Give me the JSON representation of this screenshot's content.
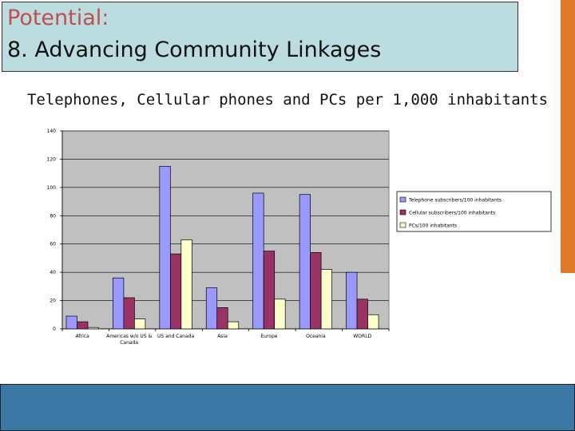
{
  "slide": {
    "title_line1": "Potential:",
    "title_line2": "8. Advancing Community Linkages",
    "subtitle": "Telephones, Cellular phones and PCs per 1,000 inhabitants"
  },
  "colors": {
    "title_bg": "#bcdde0",
    "accent_orange": "#e07a2a",
    "bottom_bar": "#3b78a6",
    "plot_bg": "#c0c0c0"
  },
  "chart_data": {
    "type": "bar",
    "title": "",
    "xlabel": "",
    "ylabel": "",
    "ylim": [
      0,
      140
    ],
    "yticks": [
      0,
      20,
      40,
      60,
      80,
      100,
      120,
      140
    ],
    "grid": true,
    "legend_position": "right",
    "categories": [
      "Africa",
      "Americas w/o US & Canada",
      "US and Canada",
      "Asia",
      "Europe",
      "Oceania",
      "WORLD"
    ],
    "series": [
      {
        "name": "Telephone subscribers/100 inhabitants",
        "color": "#9999ff",
        "values": [
          9,
          36,
          115,
          29,
          96,
          95,
          40
        ]
      },
      {
        "name": "Cellular subscribers/100 inhabitants",
        "color": "#993366",
        "values": [
          5,
          22,
          53,
          15,
          55,
          54,
          21
        ]
      },
      {
        "name": "PCs/100 inhabitants",
        "color": "#ffffcc",
        "values": [
          1,
          7,
          63,
          5,
          21,
          42,
          10
        ]
      }
    ]
  }
}
